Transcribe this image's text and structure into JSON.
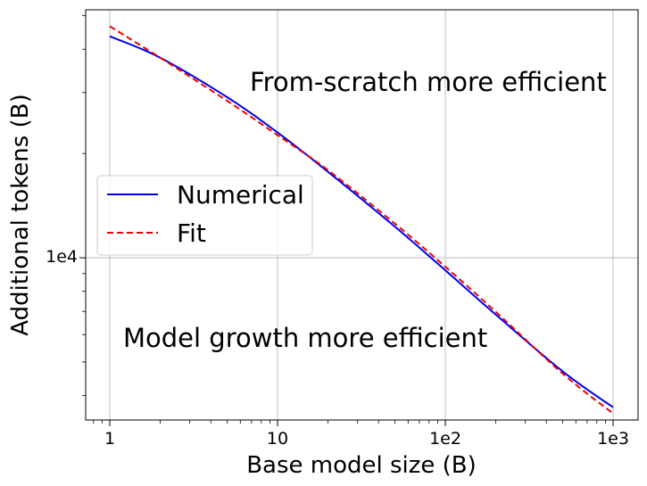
{
  "chart_data": {
    "type": "line",
    "title": "",
    "xlabel": "Base model size (B)",
    "ylabel": "Additional tokens (B)",
    "xscale": "log",
    "yscale": "log",
    "xlim": [
      0.75,
      1300
    ],
    "ylim": [
      3400,
      52000
    ],
    "grid": true,
    "legend_position": "center-left",
    "x_ticks": [
      {
        "value": 1,
        "label": "1"
      },
      {
        "value": 10,
        "label": "10"
      },
      {
        "value": 100,
        "label": "1e2"
      },
      {
        "value": 1000,
        "label": "1e3"
      }
    ],
    "y_ticks": [
      {
        "value": 10000,
        "label": "1e4"
      }
    ],
    "x": [
      1,
      2,
      5,
      10,
      20,
      50,
      100,
      200,
      500,
      1000
    ],
    "series": [
      {
        "name": "Numerical",
        "color": "#0000ee",
        "style": "solid",
        "values": [
          43600,
          37800,
          29100,
          23000,
          17700,
          12300,
          9200,
          6850,
          4700,
          3700
        ]
      },
      {
        "name": "Fit",
        "color": "#ee0000",
        "style": "dashed",
        "values": [
          46600,
          37800,
          28400,
          22600,
          17900,
          12550,
          9420,
          6980,
          4630,
          3550
        ]
      }
    ],
    "annotations": [
      {
        "text": "From-scratch more efficient",
        "position": "upper-right"
      },
      {
        "text": "Model growth more efficient",
        "position": "lower-left"
      }
    ]
  }
}
